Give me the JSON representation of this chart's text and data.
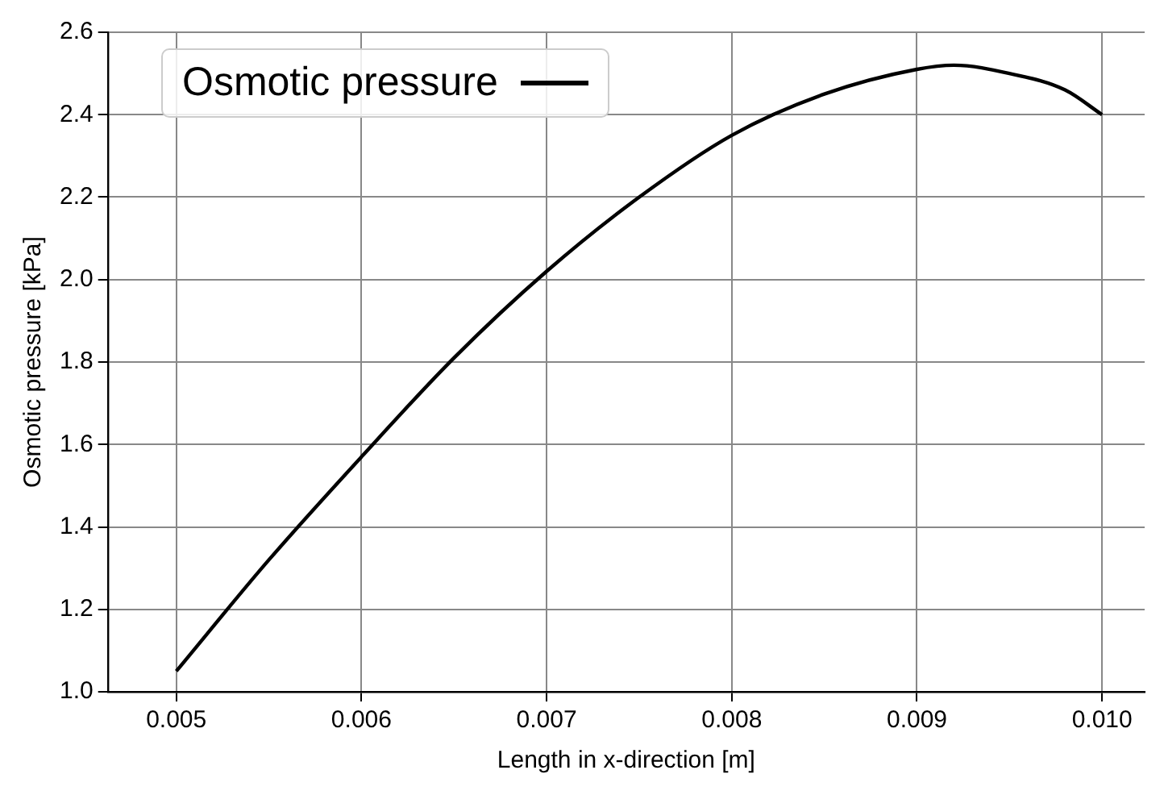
{
  "chart_data": {
    "type": "line",
    "xlabel": "Length in x-direction [m]",
    "ylabel": "Osmotic pressure [kPa]",
    "x": [
      0.005,
      0.0055,
      0.006,
      0.0065,
      0.007,
      0.0075,
      0.008,
      0.0085,
      0.009,
      0.0092,
      0.0095,
      0.0098,
      0.01
    ],
    "series": [
      {
        "name": "Osmotic pressure",
        "color": "#000000",
        "values": [
          1.05,
          1.32,
          1.57,
          1.81,
          2.02,
          2.2,
          2.35,
          2.45,
          2.51,
          2.52,
          2.5,
          2.46,
          2.4
        ]
      }
    ],
    "xlim": [
      0.00463,
      0.01023
    ],
    "ylim": [
      1.0,
      2.6
    ],
    "xticks": [
      0.005,
      0.006,
      0.007,
      0.008,
      0.009,
      {
        "value": 0.01,
        "label": "0.010"
      }
    ],
    "yticks": [
      {
        "value": 1,
        "label": "1.0"
      },
      1.2,
      1.4,
      1.6,
      1.8,
      {
        "value": 2,
        "label": "2.0"
      },
      2.2,
      2.4,
      2.6
    ],
    "grid": true,
    "legend": "top left",
    "line_style": "solid",
    "marker": "none"
  }
}
